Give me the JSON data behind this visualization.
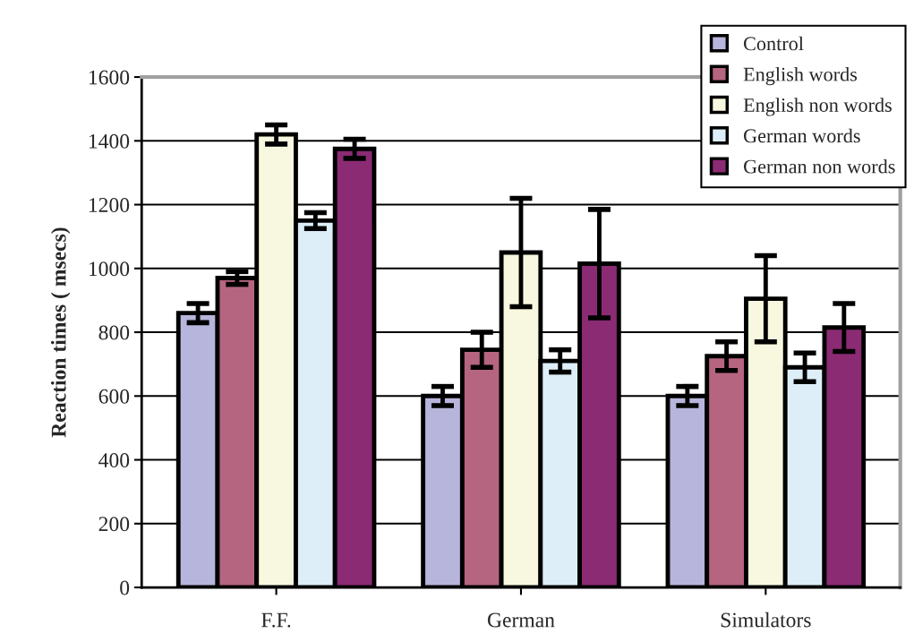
{
  "chart_data": {
    "type": "bar",
    "ylabel": "Reaction times ( msecs)",
    "categories": [
      "F.F.",
      "German",
      "Simulators"
    ],
    "series": [
      {
        "name": "Control",
        "color": "#b7b5db",
        "values": [
          860,
          600,
          600
        ],
        "errors": [
          30,
          30,
          30
        ]
      },
      {
        "name": "English words",
        "color": "#b56580",
        "values": [
          970,
          745,
          725
        ],
        "errors": [
          20,
          55,
          45
        ]
      },
      {
        "name": "English non words",
        "color": "#f8f8e0",
        "values": [
          1420,
          1050,
          905
        ],
        "errors": [
          30,
          170,
          135
        ]
      },
      {
        "name": "German words",
        "color": "#ddeef8",
        "values": [
          1150,
          710,
          690
        ],
        "errors": [
          25,
          35,
          45
        ]
      },
      {
        "name": "German non words",
        "color": "#8b2b73",
        "values": [
          1375,
          1015,
          815
        ],
        "errors": [
          30,
          170,
          75
        ]
      }
    ],
    "ylim": [
      0,
      1600
    ],
    "yticks": [
      0,
      200,
      400,
      600,
      800,
      1000,
      1200,
      1400,
      1600
    ],
    "grid": "y",
    "legend": "top right"
  }
}
